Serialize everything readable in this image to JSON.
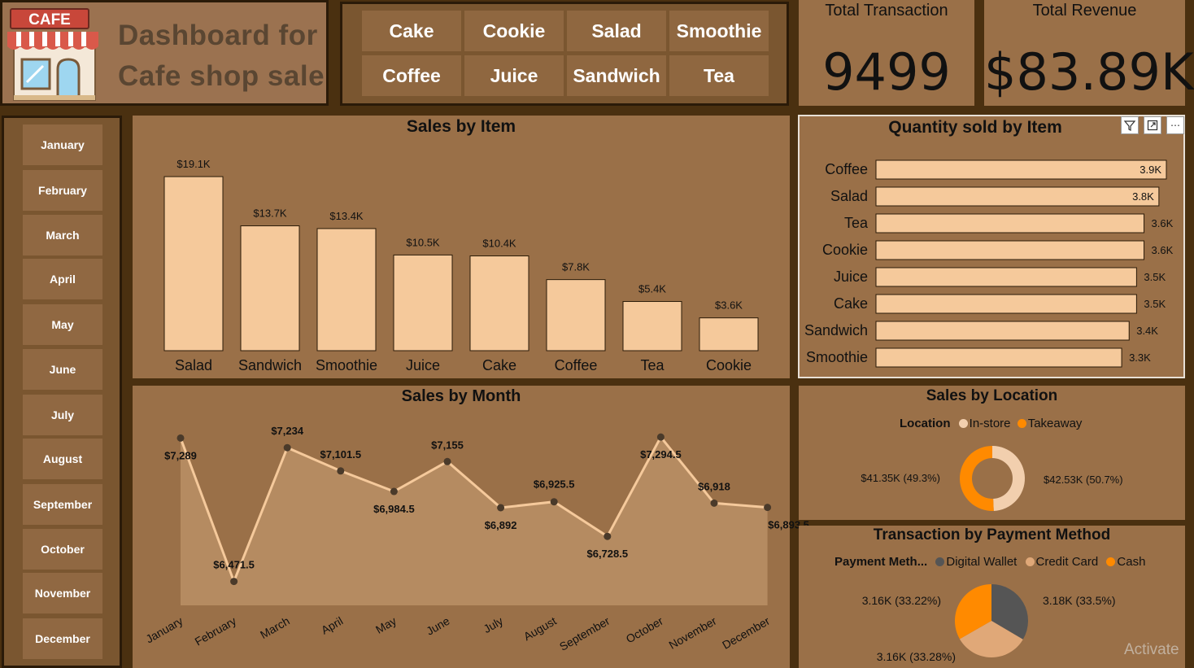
{
  "header": {
    "logo_text": "CAFE",
    "title_line1": "Dashboard for",
    "title_line2": "Cafe shop sale"
  },
  "item_slicer": {
    "items": [
      "Cake",
      "Cookie",
      "Salad",
      "Smoothie",
      "Coffee",
      "Juice",
      "Sandwich",
      "Tea"
    ]
  },
  "kpis": {
    "transactions_label": "Total Transaction",
    "transactions_value": "9499",
    "revenue_label": "Total Revenue",
    "revenue_value": "$83.89K"
  },
  "month_slicer": {
    "months": [
      "January",
      "February",
      "March",
      "April",
      "May",
      "June",
      "July",
      "August",
      "September",
      "October",
      "November",
      "December"
    ]
  },
  "visual_header_icons": [
    "filter-icon",
    "focus-mode-icon",
    "more-options-icon"
  ],
  "watermark": "Activate",
  "colors": {
    "background": "#4a3010",
    "panel": "#9a7048",
    "bar_fill": "#f5c99b",
    "line": "#f5c99b",
    "orange": "#ff8a00",
    "dark_grey": "#555555",
    "tan": "#e0a878"
  },
  "chart_data": [
    {
      "type": "bar",
      "title": "Sales by Item",
      "categories": [
        "Salad",
        "Sandwich",
        "Smoothie",
        "Juice",
        "Cake",
        "Coffee",
        "Tea",
        "Cookie"
      ],
      "values": [
        19.1,
        13.7,
        13.4,
        10.5,
        10.4,
        7.8,
        5.4,
        3.6
      ],
      "labels": [
        "$19.1K",
        "$13.7K",
        "$13.4K",
        "$10.5K",
        "$10.4K",
        "$7.8K",
        "$5.4K",
        "$3.6K"
      ],
      "ylim": [
        0,
        20
      ]
    },
    {
      "type": "bar",
      "orientation": "horizontal",
      "title": "Quantity sold by Item",
      "categories": [
        "Coffee",
        "Salad",
        "Tea",
        "Cookie",
        "Juice",
        "Cake",
        "Sandwich",
        "Smoothie"
      ],
      "values": [
        3.9,
        3.8,
        3.6,
        3.6,
        3.5,
        3.5,
        3.4,
        3.3
      ],
      "labels": [
        "3.9K",
        "3.8K",
        "3.6K",
        "3.6K",
        "3.5K",
        "3.5K",
        "3.4K",
        "3.3K"
      ],
      "xlim": [
        0,
        3.9
      ]
    },
    {
      "type": "area",
      "title": "Sales by Month",
      "categories": [
        "January",
        "February",
        "March",
        "April",
        "May",
        "June",
        "July",
        "August",
        "September",
        "October",
        "November",
        "December"
      ],
      "values": [
        7289,
        6471.5,
        7234,
        7101.5,
        6984.5,
        7155,
        6892,
        6925.5,
        6728.5,
        7294.5,
        6918,
        6893.5
      ],
      "labels": [
        "$7,289",
        "$6,471.5",
        "$7,234",
        "$7,101.5",
        "$6,984.5",
        "$7,155",
        "$6,892",
        "$6,925.5",
        "$6,728.5",
        "$7,294.5",
        "$6,918",
        "$6,893.5"
      ]
    },
    {
      "type": "pie",
      "variant": "donut",
      "title": "Sales by Location",
      "legend_title": "Location",
      "series": [
        {
          "name": "In-store",
          "value": 41.35,
          "label": "$41.35K (49.3%)",
          "color": "#f2cfae"
        },
        {
          "name": "Takeaway",
          "value": 42.53,
          "label": "$42.53K (50.7%)",
          "color": "#ff8a00"
        }
      ]
    },
    {
      "type": "pie",
      "title": "Transaction by Payment Method",
      "legend_title": "Payment Meth...",
      "series": [
        {
          "name": "Digital Wallet",
          "value": 3.18,
          "label": "3.18K (33.5%)",
          "color": "#555555"
        },
        {
          "name": "Credit Card",
          "value": 3.16,
          "label": "3.16K (33.28%)",
          "color": "#e0a878"
        },
        {
          "name": "Cash",
          "value": 3.16,
          "label": "3.16K (33.22%)",
          "color": "#ff8a00"
        }
      ]
    }
  ]
}
